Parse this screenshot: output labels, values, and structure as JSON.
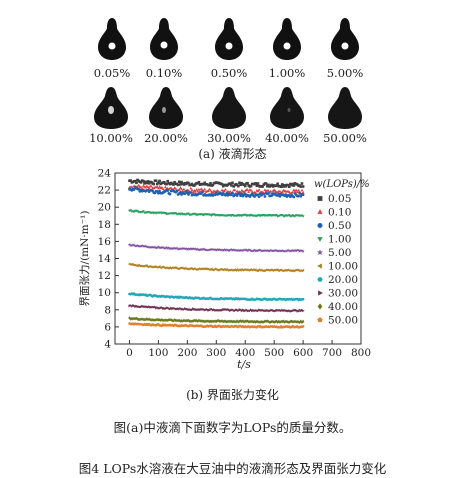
{
  "droplets": {
    "row1": [
      {
        "label": "0.05%"
      },
      {
        "label": "0.10%"
      },
      {
        "label": "0.50%"
      },
      {
        "label": "1.00%"
      },
      {
        "label": "5.00%"
      }
    ],
    "row2": [
      {
        "label": "10.00%"
      },
      {
        "label": "20.00%"
      },
      {
        "label": "30.00%"
      },
      {
        "label": "40.00%"
      },
      {
        "label": "50.00%"
      }
    ],
    "caption": "(a) 液滴形态"
  },
  "chart_caption": "(b) 界面张力变化",
  "note": "图(a)中液滴下面数字为LOPs的质量分数。",
  "figure_title": "图4 LOPs水溶液在大豆油中的液滴形态及界面张力变化",
  "chart_data": {
    "type": "scatter",
    "xlabel": "t/s",
    "ylabel": "界面张力/(mN·m⁻¹)",
    "xlim": [
      -50,
      800
    ],
    "ylim": [
      4,
      24
    ],
    "xticks": [
      0,
      100,
      200,
      300,
      400,
      500,
      600,
      700,
      800
    ],
    "yticks": [
      4,
      6,
      8,
      10,
      12,
      14,
      16,
      18,
      20,
      22,
      24
    ],
    "legend_title": "w(LOPs)/%",
    "legend_position": "right",
    "x_range": [
      0,
      600
    ],
    "series": [
      {
        "name": "0.05",
        "marker": "square",
        "color": "#404040",
        "start": 23.1,
        "end": 22.6
      },
      {
        "name": "0.10",
        "marker": "triangle",
        "color": "#d94040",
        "start": 22.5,
        "end": 21.8
      },
      {
        "name": "0.50",
        "marker": "circle",
        "color": "#2060b0",
        "start": 22.2,
        "end": 21.4
      },
      {
        "name": "1.00",
        "marker": "triangle-down",
        "color": "#2aa060",
        "start": 19.6,
        "end": 19.0
      },
      {
        "name": "5.00",
        "marker": "star",
        "color": "#8050a0",
        "start": 15.6,
        "end": 14.9
      },
      {
        "name": "10.00",
        "marker": "triangle-left",
        "color": "#b08020",
        "start": 13.3,
        "end": 12.6
      },
      {
        "name": "20.00",
        "marker": "hexagon",
        "color": "#20a8b8",
        "start": 9.9,
        "end": 9.2
      },
      {
        "name": "30.00",
        "marker": "triangle-right",
        "color": "#703050",
        "start": 8.5,
        "end": 7.9
      },
      {
        "name": "40.00",
        "marker": "diamond",
        "color": "#6a7a20",
        "start": 7.0,
        "end": 6.6
      },
      {
        "name": "50.00",
        "marker": "pentagon",
        "color": "#e08030",
        "start": 6.4,
        "end": 6.0
      }
    ]
  }
}
